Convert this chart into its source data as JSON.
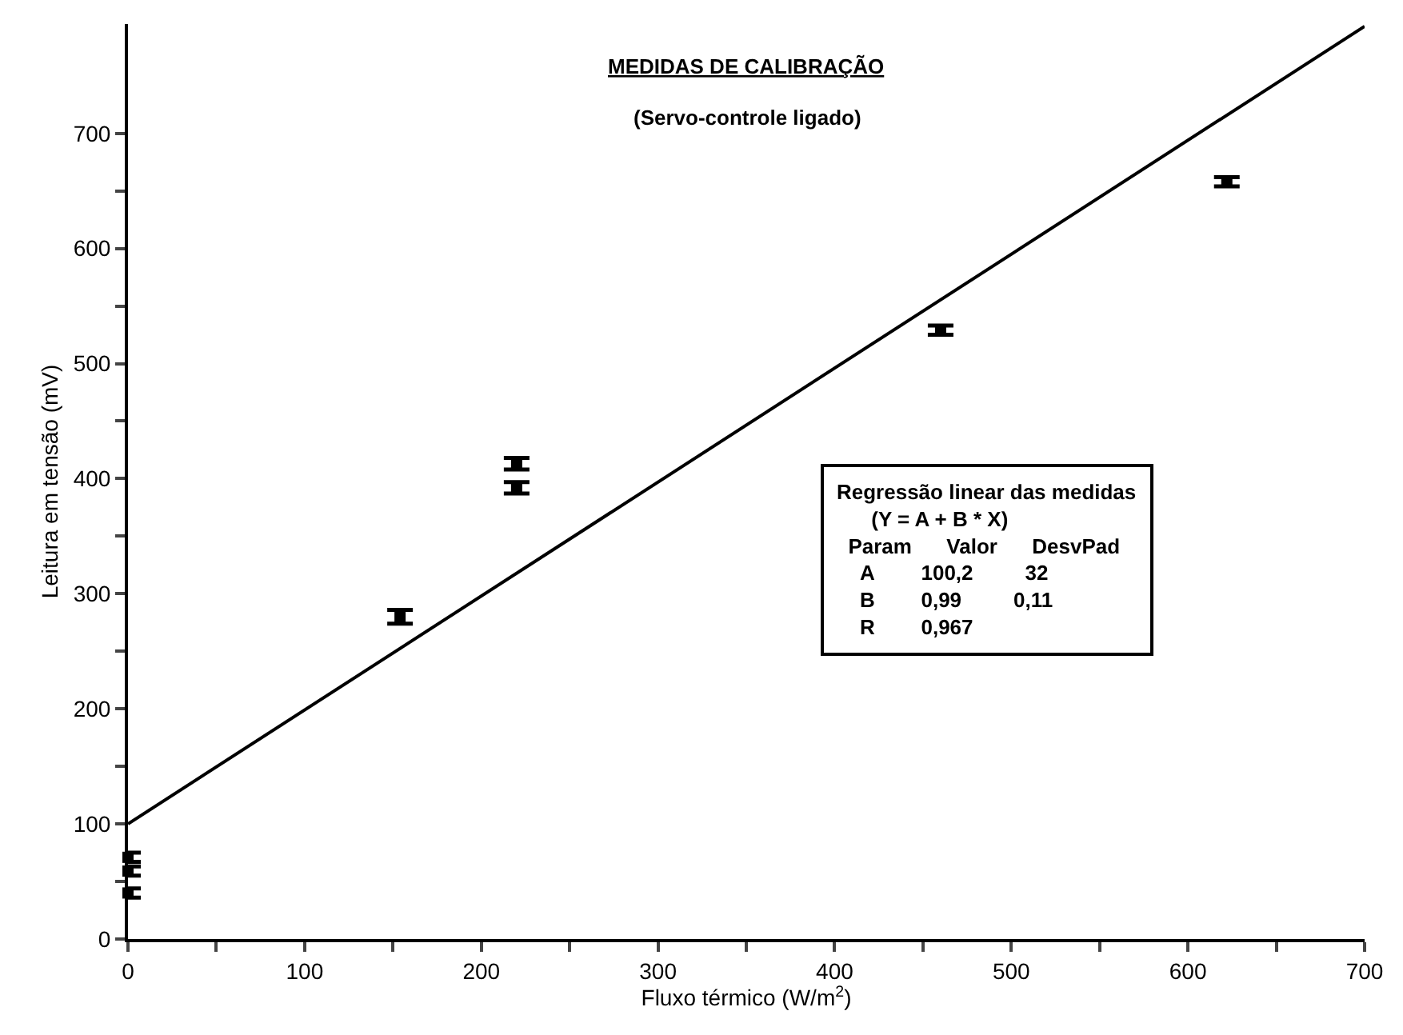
{
  "chart_data": {
    "type": "scatter",
    "title": "MEDIDAS DE CALIBRAÇÃO",
    "subtitle": "(Servo-controle ligado)",
    "xlabel": "Fluxo térmico (W/m$^{2}$)",
    "ylabel": "Leitura em tensão (mV)",
    "xlim": [
      0,
      700
    ],
    "ylim": [
      0,
      795
    ],
    "xticks": [
      0,
      {
        "value": 50,
        "label": null
      },
      100,
      {
        "value": 150,
        "label": null
      },
      200,
      {
        "value": 250,
        "label": null
      },
      300,
      {
        "value": 350,
        "label": null
      },
      400,
      {
        "value": 450,
        "label": null
      },
      500,
      {
        "value": 550,
        "label": null
      },
      600,
      {
        "value": 650,
        "label": null
      },
      700
    ],
    "yticks": [
      0,
      {
        "value": 50,
        "label": null
      },
      100,
      {
        "value": 150,
        "label": null
      },
      200,
      {
        "value": 250,
        "label": null
      },
      300,
      {
        "value": 350,
        "label": null
      },
      400,
      {
        "value": 450,
        "label": null
      },
      500,
      {
        "value": 550,
        "label": null
      },
      600,
      {
        "value": 650,
        "label": null
      },
      700
    ],
    "series": [
      {
        "color": "#000000",
        "marker": "square",
        "x": [
          0,
          0,
          0,
          154,
          220,
          220,
          460,
          622
        ],
        "values": [
          71,
          59,
          40,
          280,
          413,
          392,
          529,
          658
        ],
        "errors": [
          4,
          4,
          4,
          6,
          5,
          5,
          4,
          4
        ]
      },
      {
        "type": "line",
        "color": "#000000",
        "line_style": "solid",
        "marker": "none",
        "x": [
          0,
          700
        ],
        "values": [
          100,
          793
        ]
      }
    ],
    "annotations": [
      "Regressão linear das medidas",
      "(Y = A + B * X)",
      "Param",
      "Valor",
      "DesvPad",
      "A",
      "100,2",
      "32",
      "B",
      "0,99",
      "0,11",
      "R",
      "0,967"
    ]
  }
}
